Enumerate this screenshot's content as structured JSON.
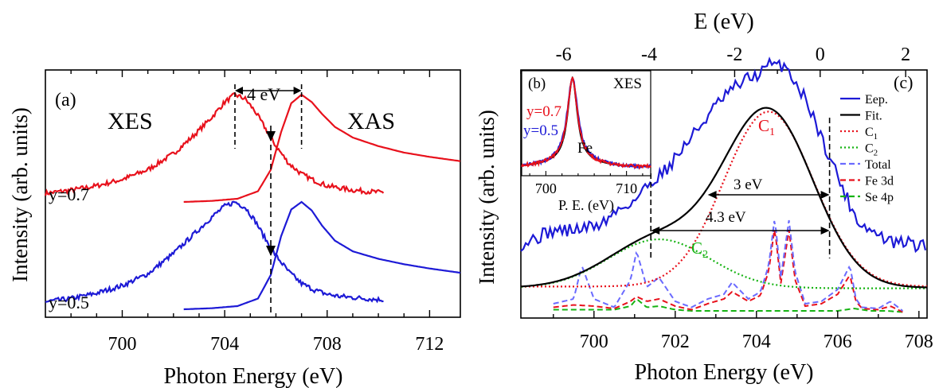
{
  "chart_data": [
    {
      "panel": "(a)",
      "type": "line",
      "xlabel": "Photon Energy (eV)",
      "ylabel": "Intensity (arb. units)",
      "xlim": [
        697,
        713.2
      ],
      "xticks": [
        700,
        704,
        708,
        712
      ],
      "labels": {
        "left": "XES",
        "right": "XAS",
        "gap": "4 eV"
      },
      "peaks": {
        "xes": 704.4,
        "xas": 707.0,
        "crossing": 705.8
      },
      "series": [
        {
          "name": "y=0.7",
          "color": "#e8111c",
          "offset": 1.6,
          "xes": {
            "x": [
              697.0,
              698.0,
              699.0,
              700.0,
              701.0,
              702.0,
              702.8,
              703.5,
              704.0,
              704.4,
              704.8,
              705.2,
              705.6,
              706.0,
              706.5,
              707.0,
              707.5,
              708.0,
              708.5,
              709.0,
              709.5,
              710.0,
              710.2
            ],
            "y": [
              0.08,
              0.11,
              0.15,
              0.21,
              0.3,
              0.45,
              0.62,
              0.79,
              0.93,
              1.0,
              0.96,
              0.84,
              0.68,
              0.52,
              0.36,
              0.26,
              0.2,
              0.15,
              0.13,
              0.11,
              0.1,
              0.09,
              0.09
            ]
          },
          "xas": {
            "x": [
              702.4,
              703.5,
              704.5,
              705.3,
              705.8,
              706.2,
              706.6,
              707.0,
              707.4,
              707.8,
              708.3,
              709.0,
              710.0,
              711.0,
              712.0,
              713.2
            ],
            "y": [
              0.0,
              0.01,
              0.03,
              0.1,
              0.3,
              0.65,
              0.92,
              1.0,
              0.93,
              0.82,
              0.7,
              0.6,
              0.52,
              0.46,
              0.42,
              0.38
            ]
          }
        },
        {
          "name": "y=0.5",
          "color": "#1d1ad6",
          "offset": 0.0,
          "xes": {
            "x": [
              697.0,
              698.0,
              699.0,
              700.0,
              701.0,
              702.0,
              702.8,
              703.5,
              704.0,
              704.4,
              704.8,
              705.2,
              705.6,
              706.0,
              706.5,
              707.0,
              707.5,
              708.0,
              708.5,
              709.0,
              709.5,
              710.0,
              710.2
            ],
            "y": [
              0.07,
              0.1,
              0.15,
              0.22,
              0.33,
              0.52,
              0.7,
              0.86,
              0.96,
              1.0,
              0.95,
              0.82,
              0.65,
              0.5,
              0.35,
              0.24,
              0.18,
              0.14,
              0.12,
              0.11,
              0.1,
              0.09,
              0.09
            ]
          },
          "xas": {
            "x": [
              702.4,
              703.5,
              704.5,
              705.3,
              705.8,
              706.2,
              706.6,
              707.0,
              707.4,
              707.8,
              708.3,
              709.0,
              710.0,
              711.0,
              712.0,
              713.2
            ],
            "y": [
              0.0,
              0.01,
              0.03,
              0.1,
              0.32,
              0.68,
              0.93,
              1.0,
              0.92,
              0.78,
              0.64,
              0.54,
              0.47,
              0.42,
              0.38,
              0.34
            ]
          }
        }
      ]
    },
    {
      "panel": "(c)",
      "type": "line",
      "xlabel": "Photon Energy (eV)",
      "ylabel": "Intensity (arb. units)",
      "top_xlabel": "E (eV)",
      "xlim": [
        698.2,
        708.2
      ],
      "xticks": [
        700,
        702,
        704,
        706,
        708
      ],
      "top_xlim": [
        -7.0,
        2.5
      ],
      "top_xticks": [
        -6,
        -4,
        -2,
        0,
        2
      ],
      "top_tick_labels": [
        "-6",
        "-4",
        "-2",
        "0",
        "2"
      ],
      "annotations": [
        "3 eV",
        "4.3 eV",
        "C1",
        "C2"
      ],
      "markers": {
        "left": 701.4,
        "right": 705.8,
        "arrow3_left": 702.8
      },
      "legend_position": "right",
      "legend": [
        {
          "label": "Eep.",
          "color": "#1d1ad6",
          "dash": "solid"
        },
        {
          "label": "Fit.",
          "color": "#000000",
          "dash": "solid"
        },
        {
          "label": "C1",
          "color": "#e8111c",
          "dash": "dot"
        },
        {
          "label": "C2",
          "color": "#16b313",
          "dash": "dot"
        },
        {
          "label": "Total",
          "color": "#6b6bff",
          "dash": "dash"
        },
        {
          "label": "Fe 3d",
          "color": "#e8111c",
          "dash": "dash"
        },
        {
          "label": "Se 4p",
          "color": "#16b313",
          "dash": "dash"
        }
      ],
      "gaussians": {
        "C1": {
          "center": 704.3,
          "sigma": 1.1,
          "amp": 1.0,
          "base": 0.03
        },
        "C2": {
          "center": 701.6,
          "sigma": 1.25,
          "amp": 0.28,
          "base": 0.02
        }
      },
      "experiment": {
        "x": [
          698.2,
          698.6,
          699.0,
          699.4,
          699.8,
          700.2,
          700.6,
          701.0,
          701.4,
          701.8,
          702.2,
          702.6,
          703.0,
          703.4,
          703.8,
          704.1,
          704.3,
          704.5,
          704.7,
          705.0,
          705.3,
          705.6,
          705.9,
          706.2,
          706.5,
          706.8,
          707.1,
          707.4,
          707.7,
          708.0,
          708.2
        ],
        "y": [
          0.21,
          0.24,
          0.27,
          0.27,
          0.28,
          0.3,
          0.36,
          0.4,
          0.48,
          0.54,
          0.63,
          0.72,
          0.81,
          0.88,
          0.93,
          0.95,
          0.99,
          0.98,
          0.99,
          0.9,
          0.81,
          0.67,
          0.55,
          0.42,
          0.31,
          0.27,
          0.24,
          0.21,
          0.22,
          0.2,
          0.2
        ]
      },
      "dos": {
        "Total": {
          "x": [
            699.0,
            699.5,
            699.7,
            700.0,
            700.5,
            700.9,
            701.05,
            701.3,
            701.6,
            702.0,
            702.4,
            702.8,
            703.2,
            703.4,
            703.8,
            704.1,
            704.3,
            704.45,
            704.6,
            704.8,
            704.95,
            705.2,
            705.6,
            706.0,
            706.3,
            706.45,
            706.6,
            707.0,
            707.3,
            707.6
          ],
          "y": [
            0.08,
            0.12,
            0.4,
            0.12,
            0.05,
            0.28,
            0.52,
            0.22,
            0.3,
            0.1,
            0.05,
            0.12,
            0.16,
            0.26,
            0.12,
            0.18,
            0.4,
            0.8,
            0.3,
            0.78,
            0.35,
            0.08,
            0.1,
            0.2,
            0.4,
            0.12,
            0.05,
            0.04,
            0.1,
            0.02
          ]
        },
        "Fe 3d": {
          "x": [
            699.0,
            699.5,
            700.0,
            700.5,
            700.9,
            701.05,
            701.3,
            701.6,
            702.0,
            702.4,
            702.8,
            703.2,
            703.4,
            703.8,
            704.1,
            704.3,
            704.45,
            704.6,
            704.8,
            704.95,
            705.2,
            705.6,
            706.0,
            706.3,
            706.45,
            706.6,
            707.0,
            707.3,
            707.6
          ],
          "y": [
            0.05,
            0.07,
            0.06,
            0.04,
            0.1,
            0.14,
            0.1,
            0.12,
            0.06,
            0.03,
            0.08,
            0.12,
            0.18,
            0.1,
            0.15,
            0.35,
            0.72,
            0.25,
            0.7,
            0.28,
            0.06,
            0.08,
            0.16,
            0.32,
            0.1,
            0.04,
            0.03,
            0.06,
            0.01
          ]
        },
        "Se 4p": {
          "x": [
            699.0,
            699.5,
            700.0,
            700.5,
            700.9,
            701.05,
            701.3,
            701.6,
            702.0,
            702.4,
            702.8,
            703.2,
            703.6,
            704.0,
            704.4,
            704.8,
            705.2,
            705.6,
            706.0,
            706.4,
            706.8,
            707.2,
            707.6
          ],
          "y": [
            0.03,
            0.03,
            0.03,
            0.03,
            0.06,
            0.12,
            0.05,
            0.06,
            0.03,
            0.02,
            0.02,
            0.02,
            0.02,
            0.02,
            0.02,
            0.02,
            0.02,
            0.02,
            0.02,
            0.04,
            0.02,
            0.02,
            0.01
          ]
        }
      }
    },
    {
      "panel": "(b)",
      "type": "line",
      "xlabel": "P. E. (eV)",
      "xlim": [
        697,
        713
      ],
      "xticks": [
        700,
        710
      ],
      "labels": {
        "title": "XES",
        "element": "Fe",
        "y07": "y=0.7",
        "y05": "y=0.5"
      },
      "center": 703.3,
      "series": [
        {
          "name": "fit",
          "color": "#000000",
          "width": 0.75
        },
        {
          "name": "y=0.5",
          "color": "#1d1ad6",
          "width": 0.85
        },
        {
          "name": "y=0.7",
          "color": "#e8111c",
          "width": 0.8
        }
      ]
    }
  ]
}
